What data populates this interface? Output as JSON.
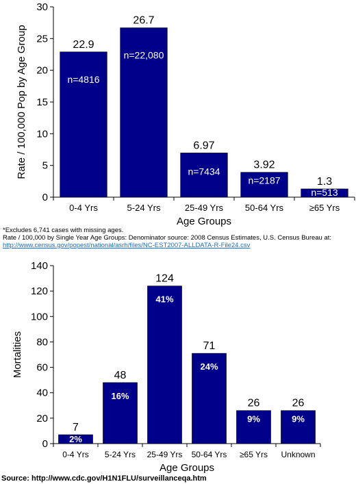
{
  "chart_data": [
    {
      "type": "bar",
      "ylabel": "Rate / 100,000 Pop by Age Group",
      "xlabel": "Age Groups",
      "ylim": [
        0,
        30
      ],
      "yticks": [
        "0",
        "5",
        "10",
        "15",
        "20",
        "25",
        "30"
      ],
      "categories": [
        "0-4 Yrs",
        "5-24 Yrs",
        "25-49 Yrs",
        "50-64 Yrs",
        "≥65  Yrs"
      ],
      "values": [
        22.9,
        26.7,
        6.97,
        3.92,
        1.3
      ],
      "value_labels": [
        "22.9",
        "26.7",
        "6.97",
        "3.92",
        "1.3"
      ],
      "inner_labels": [
        "n=4816",
        "n=22,080",
        "n=7434",
        "n=2187",
        "n=513"
      ],
      "bar_color": "#00008B"
    },
    {
      "type": "bar",
      "ylabel": "Mortalities",
      "xlabel": "Age Groups",
      "ylim": [
        0,
        140
      ],
      "yticks": [
        "0",
        "20",
        "40",
        "60",
        "80",
        "100",
        "120",
        "140"
      ],
      "categories": [
        "0-4 Yrs",
        "5-24 Yrs",
        "25-49 Yrs",
        "50-64 Yrs",
        "≥65  Yrs",
        "Unknown"
      ],
      "values": [
        7,
        48,
        124,
        71,
        26,
        26
      ],
      "value_labels": [
        "7",
        "48",
        "124",
        "71",
        "26",
        "26"
      ],
      "inner_labels": [
        "2%",
        "16%",
        "41%",
        "24%",
        "9%",
        "9%"
      ],
      "bar_color": "#00008B"
    }
  ],
  "notes": {
    "line1": "*Excludes 6,741 cases with missing ages.",
    "line2": "Rate / 100,000 by Single Year Age Groups: Denominator source: 2008 Census Estimates, U.S. Census Bureau at:",
    "link": "http://www.census.gov/popest/national/asrh/files/NC-EST2007-ALLDATA-R-File24.csv"
  },
  "source": "Source: http://www.cdc.gov/H1N1FLU/surveillanceqa.htm"
}
